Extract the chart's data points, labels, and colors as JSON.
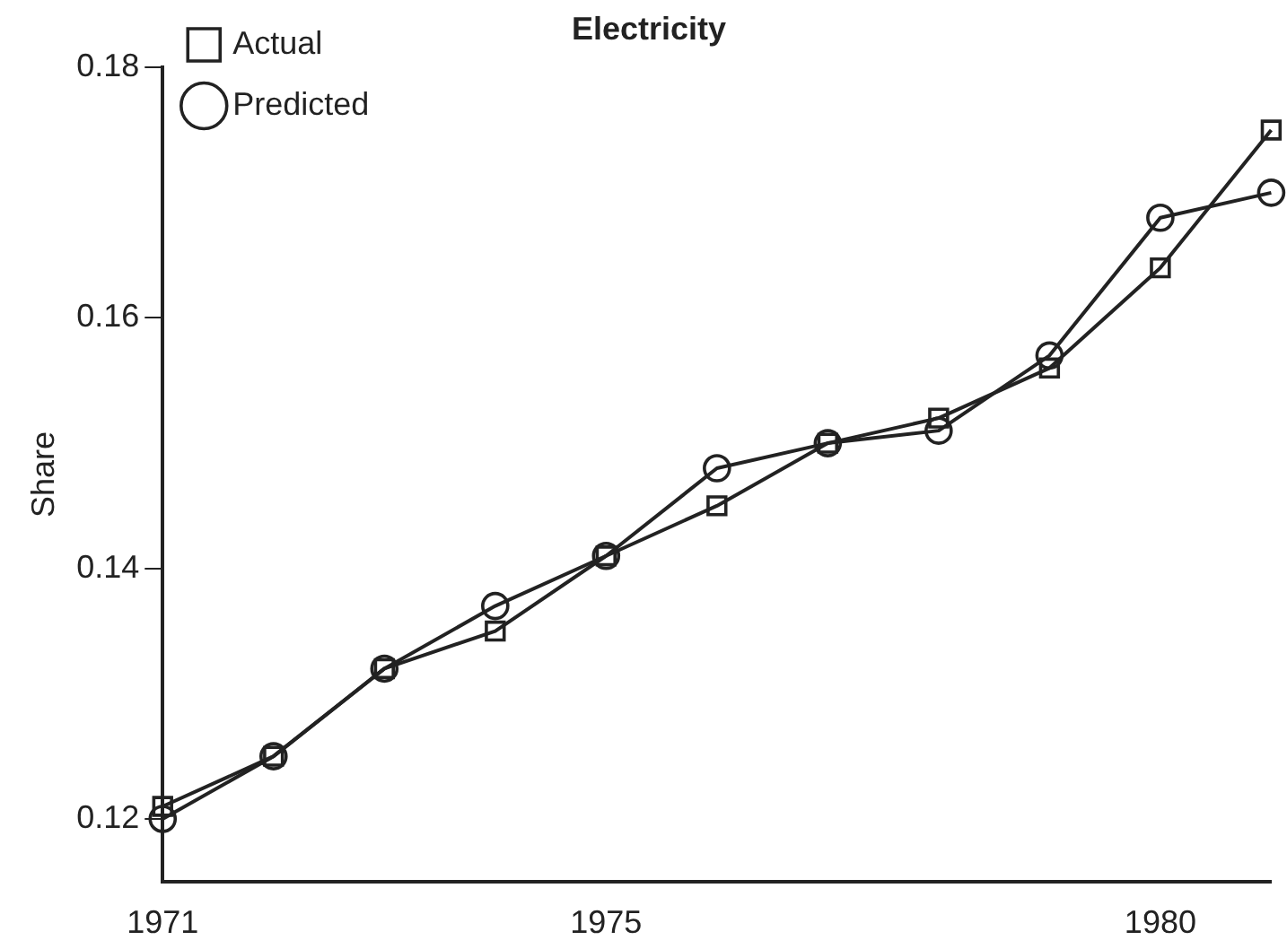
{
  "chart_data": {
    "type": "line",
    "title": "Electricity",
    "ylabel": "Share",
    "categories": [
      "1971",
      null,
      null,
      null,
      "1975",
      null,
      null,
      null,
      null,
      "1980",
      null
    ],
    "series": [
      {
        "name": "Actual",
        "color": "#222222",
        "marker": "square",
        "values": [
          0.121,
          0.125,
          0.132,
          0.135,
          0.141,
          0.145,
          0.15,
          0.152,
          0.156,
          0.164,
          0.175
        ]
      },
      {
        "name": "Predicted",
        "color": "#222222",
        "marker": "circle",
        "values": [
          0.12,
          0.125,
          0.132,
          0.137,
          0.141,
          0.148,
          0.15,
          0.151,
          0.157,
          0.168,
          0.17
        ]
      }
    ],
    "ylim": [
      0.115,
      0.18
    ],
    "yticks": [
      0.12,
      0.14,
      0.16,
      0.18
    ],
    "grid": false,
    "legend": "top left",
    "line_style": "solid"
  }
}
